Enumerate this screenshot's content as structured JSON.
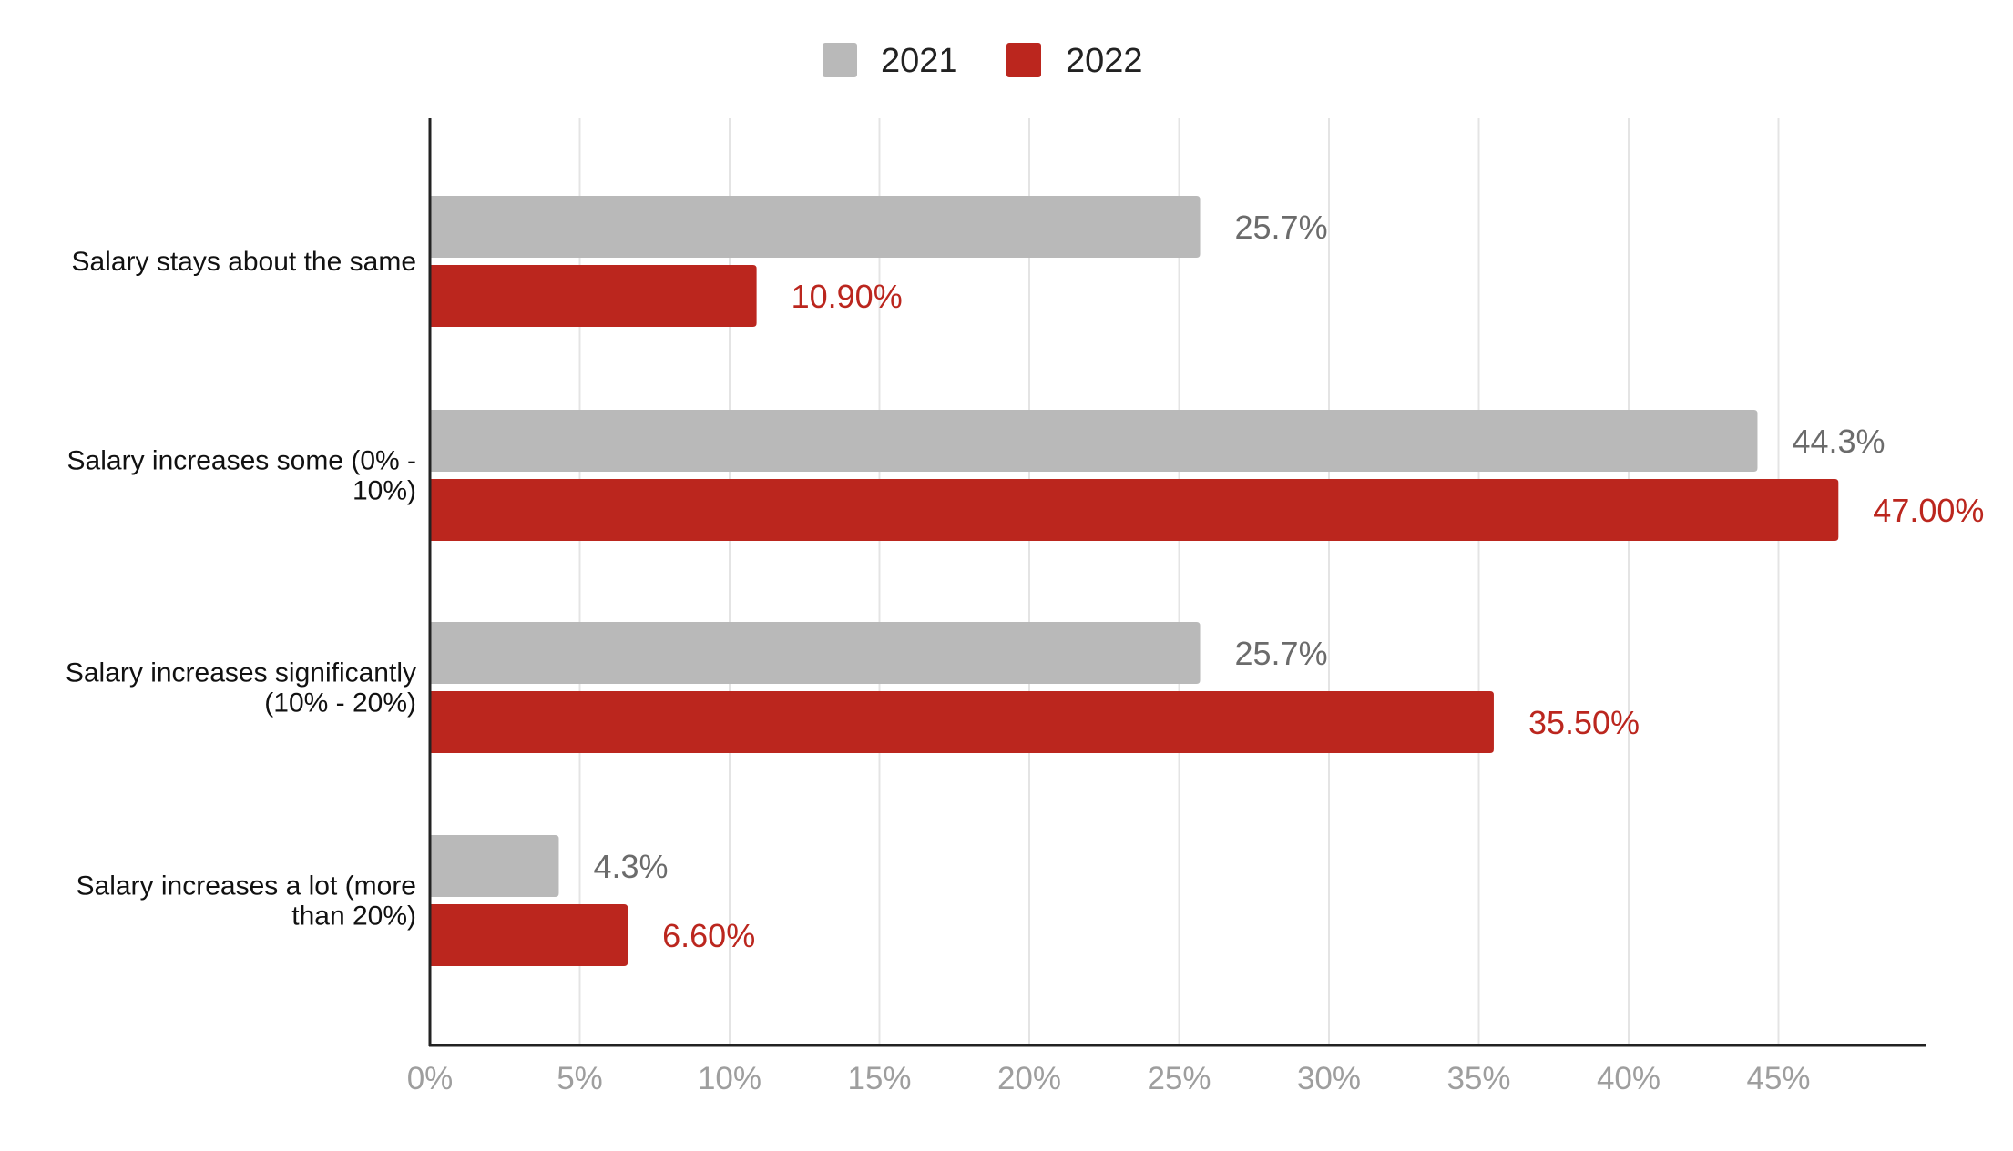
{
  "chart_data": {
    "type": "bar",
    "orientation": "horizontal",
    "title": "",
    "xlabel": "",
    "ylabel": "",
    "categories": [
      [
        "Salary stays about the same"
      ],
      [
        "Salary increases some (0% -",
        "10%)"
      ],
      [
        "Salary increases significantly",
        "(10% - 20%)"
      ],
      [
        "Salary increases a lot (more",
        "than 20%)"
      ]
    ],
    "series": [
      {
        "name": "2021",
        "color": "#b9b9b9",
        "label_color": "#6b6b6b",
        "values": [
          25.7,
          44.3,
          25.7,
          4.3
        ],
        "labels": [
          "25.7%",
          "44.3%",
          "25.7%",
          "4.3%"
        ]
      },
      {
        "name": "2022",
        "color": "#bb261e",
        "label_color": "#bb261e",
        "values": [
          10.9,
          47.0,
          35.5,
          6.6
        ],
        "labels": [
          "10.90%",
          "47.00%",
          "35.50%",
          "6.60%"
        ]
      }
    ],
    "xlim": [
      0,
      50
    ],
    "x_ticks": [
      0,
      5,
      10,
      15,
      20,
      25,
      30,
      35,
      40,
      45
    ],
    "x_tick_labels": [
      "0%",
      "5%",
      "10%",
      "15%",
      "20%",
      "25%",
      "30%",
      "35%",
      "40%",
      "45%"
    ],
    "grid": true,
    "legend": "top-center"
  }
}
